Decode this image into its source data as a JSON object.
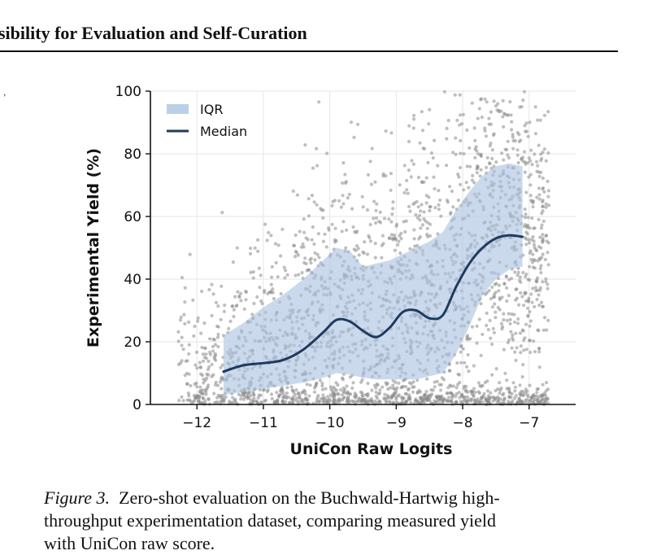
{
  "header": {
    "title": "sibility for Evaluation and Self-Curation"
  },
  "figure": {
    "caption_label": "Figure 3.",
    "caption_line1": "Zero-shot evaluation on the Buchwald-Hartwig high-",
    "caption_line2": "throughput experimentation dataset, comparing measured yield",
    "caption_line3": "with UniCon raw score."
  },
  "chart_data": {
    "type": "scatter",
    "xlabel": "UniCon Raw Logits",
    "ylabel": "Experimental Yield (%)",
    "xlim": [
      -12.7,
      -6.3
    ],
    "ylim": [
      0,
      100
    ],
    "x_ticks": [
      -12,
      -11,
      -10,
      -9,
      -8,
      -7
    ],
    "x_tick_labels": [
      "−12",
      "−11",
      "−10",
      "−9",
      "−8",
      "−7"
    ],
    "y_ticks": [
      0,
      20,
      40,
      60,
      80,
      100
    ],
    "y_tick_labels": [
      "0",
      "20",
      "40",
      "60",
      "80",
      "100"
    ],
    "grid": true,
    "legend_position": "top-left",
    "legend": [
      "IQR",
      "Median"
    ],
    "colors": {
      "points": "#8a8a8a",
      "iqr": "#a9c4e0",
      "median": "#1f3a5f"
    },
    "series": [
      {
        "name": "Median",
        "type": "line",
        "x": [
          -11.6,
          -11.3,
          -11.0,
          -10.7,
          -10.4,
          -10.1,
          -9.9,
          -9.7,
          -9.5,
          -9.3,
          -9.1,
          -8.9,
          -8.7,
          -8.5,
          -8.3,
          -8.1,
          -7.9,
          -7.7,
          -7.5,
          -7.3,
          -7.1
        ],
        "y": [
          10.5,
          12.5,
          13.2,
          14.2,
          17.5,
          23.0,
          27.0,
          26.5,
          23.5,
          21.5,
          24.5,
          29.5,
          30.0,
          27.5,
          28.5,
          37.5,
          45.0,
          50.0,
          53.0,
          54.0,
          53.5
        ]
      },
      {
        "name": "IQR",
        "type": "band",
        "x": [
          -11.6,
          -11.3,
          -11.0,
          -10.7,
          -10.4,
          -10.1,
          -9.9,
          -9.7,
          -9.5,
          -9.3,
          -9.1,
          -8.9,
          -8.7,
          -8.5,
          -8.3,
          -8.1,
          -7.9,
          -7.7,
          -7.5,
          -7.3,
          -7.1
        ],
        "lower": [
          3.0,
          4.0,
          5.0,
          6.0,
          7.0,
          8.5,
          10.0,
          9.5,
          8.5,
          8.0,
          8.0,
          8.0,
          8.0,
          9.0,
          10.0,
          16.0,
          25.0,
          35.0,
          40.0,
          43.0,
          44.0
        ],
        "upper": [
          22.0,
          26.0,
          31.0,
          35.0,
          40.0,
          46.0,
          50.0,
          49.0,
          44.0,
          45.0,
          46.0,
          48.0,
          50.0,
          52.0,
          55.0,
          62.0,
          68.0,
          73.0,
          76.0,
          77.0,
          76.0
        ]
      },
      {
        "name": "",
        "type": "scatter",
        "count": 3000,
        "x_range": [
          -12.3,
          -6.7
        ]
      }
    ]
  }
}
